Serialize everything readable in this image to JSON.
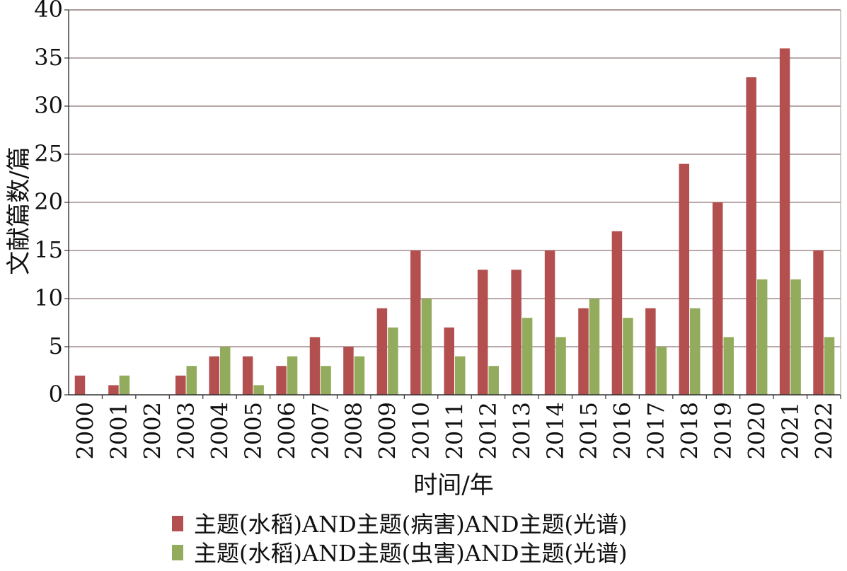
{
  "chart_data": {
    "type": "bar",
    "categories": [
      "2000",
      "2001",
      "2002",
      "2003",
      "2004",
      "2005",
      "2006",
      "2007",
      "2008",
      "2009",
      "2010",
      "2011",
      "2012",
      "2013",
      "2014",
      "2015",
      "2016",
      "2017",
      "2018",
      "2019",
      "2020",
      "2021",
      "2022"
    ],
    "series": [
      {
        "name": "主题(水稻)AND主题(病害)AND主题(光谱)",
        "color": "#b3504f",
        "values": [
          2,
          1,
          0,
          2,
          4,
          4,
          3,
          6,
          5,
          9,
          15,
          7,
          13,
          13,
          15,
          9,
          17,
          9,
          24,
          20,
          33,
          36,
          15
        ]
      },
      {
        "name": "主题(水稻)AND主题(虫害)AND主题(光谱)",
        "color": "#93ab5c",
        "values": [
          0,
          2,
          0,
          3,
          5,
          1,
          4,
          3,
          4,
          7,
          10,
          4,
          3,
          8,
          6,
          10,
          8,
          5,
          9,
          6,
          12,
          12,
          6
        ]
      }
    ],
    "xlabel": "时间/年",
    "ylabel": "文献篇数/篇",
    "ylim": [
      0,
      40
    ],
    "yticks": [
      0,
      5,
      10,
      15,
      20,
      25,
      30,
      35,
      40
    ],
    "grid": true,
    "gridColor": "#a08c8c",
    "legend_position": "bottom"
  }
}
